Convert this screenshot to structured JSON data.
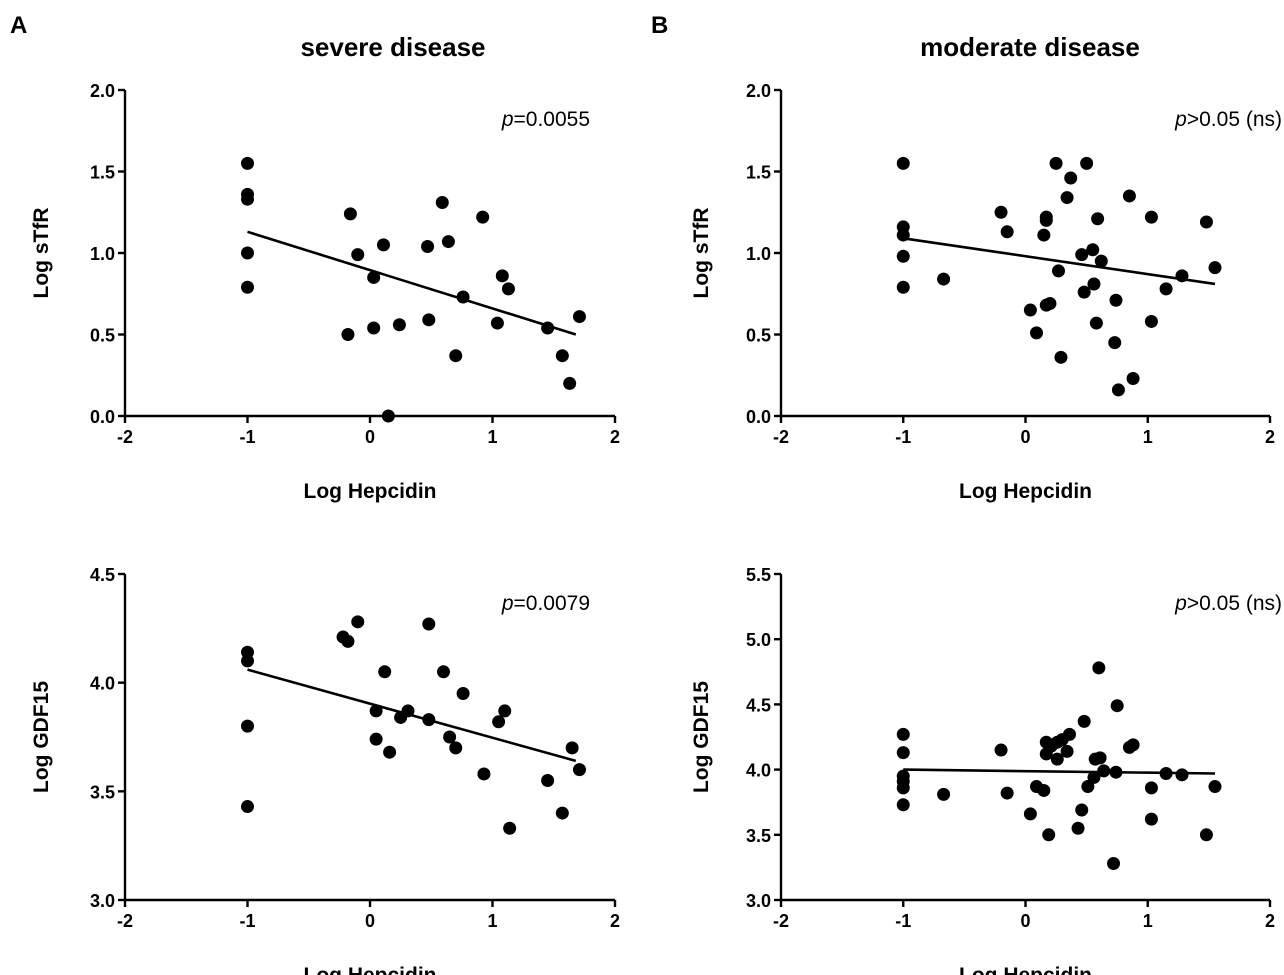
{
  "panel_letters": [
    "A",
    "B"
  ],
  "titles": [
    "severe disease",
    "moderate disease"
  ],
  "chart_data": [
    {
      "type": "scatter",
      "panel": "A",
      "title": "severe disease",
      "xlabel": "Log Hepcidin",
      "ylabel": "Log sTfR",
      "xlim": [
        -2,
        2
      ],
      "ylim": [
        0.0,
        2.0
      ],
      "xticks": [
        "-2",
        "-1",
        "0",
        "1",
        "2"
      ],
      "yticks": [
        "0.0",
        "0.5",
        "1.0",
        "1.5",
        "2.0"
      ],
      "annotation": {
        "italic": "p",
        "rest": "=0.0055"
      },
      "fit_line": {
        "x": [
          -1.0,
          1.68
        ],
        "y": [
          1.13,
          0.5
        ]
      },
      "points": [
        {
          "x": -1.0,
          "y": 1.55
        },
        {
          "x": -1.0,
          "y": 1.36
        },
        {
          "x": -1.0,
          "y": 1.33
        },
        {
          "x": -1.0,
          "y": 1.0
        },
        {
          "x": -1.0,
          "y": 0.79
        },
        {
          "x": -0.18,
          "y": 0.5
        },
        {
          "x": -0.16,
          "y": 1.24
        },
        {
          "x": -0.1,
          "y": 0.99
        },
        {
          "x": 0.03,
          "y": 0.85
        },
        {
          "x": 0.03,
          "y": 0.54
        },
        {
          "x": 0.11,
          "y": 1.05
        },
        {
          "x": 0.15,
          "y": 0.0
        },
        {
          "x": 0.24,
          "y": 0.56
        },
        {
          "x": 0.47,
          "y": 1.04
        },
        {
          "x": 0.48,
          "y": 0.59
        },
        {
          "x": 0.59,
          "y": 1.31
        },
        {
          "x": 0.64,
          "y": 1.07
        },
        {
          "x": 0.7,
          "y": 0.37
        },
        {
          "x": 0.76,
          "y": 0.73
        },
        {
          "x": 0.92,
          "y": 1.22
        },
        {
          "x": 1.04,
          "y": 0.57
        },
        {
          "x": 1.08,
          "y": 0.86
        },
        {
          "x": 1.13,
          "y": 0.78
        },
        {
          "x": 1.45,
          "y": 0.54
        },
        {
          "x": 1.57,
          "y": 0.37
        },
        {
          "x": 1.63,
          "y": 0.2
        },
        {
          "x": 1.71,
          "y": 0.61
        }
      ]
    },
    {
      "type": "scatter",
      "panel": "B",
      "title": "moderate disease",
      "xlabel": "Log Hepcidin",
      "ylabel": "Log sTfR",
      "xlim": [
        -2,
        2
      ],
      "ylim": [
        0.0,
        2.0
      ],
      "xticks": [
        "-2",
        "-1",
        "0",
        "1",
        "2"
      ],
      "yticks": [
        "0.0",
        "0.5",
        "1.0",
        "1.5",
        "2.0"
      ],
      "annotation": {
        "italic": "p",
        "rest": ">0.05 (ns)"
      },
      "fit_line": {
        "x": [
          -1.0,
          1.55
        ],
        "y": [
          1.09,
          0.81
        ]
      },
      "points": [
        {
          "x": -1.0,
          "y": 1.55
        },
        {
          "x": -1.0,
          "y": 1.16
        },
        {
          "x": -1.0,
          "y": 1.11
        },
        {
          "x": -1.0,
          "y": 0.98
        },
        {
          "x": -1.0,
          "y": 0.79
        },
        {
          "x": -0.67,
          "y": 0.84
        },
        {
          "x": -0.2,
          "y": 1.25
        },
        {
          "x": -0.15,
          "y": 1.13
        },
        {
          "x": 0.04,
          "y": 0.65
        },
        {
          "x": 0.09,
          "y": 0.51
        },
        {
          "x": 0.15,
          "y": 1.11
        },
        {
          "x": 0.17,
          "y": 1.22
        },
        {
          "x": 0.17,
          "y": 1.2
        },
        {
          "x": 0.17,
          "y": 0.68
        },
        {
          "x": 0.2,
          "y": 0.69
        },
        {
          "x": 0.25,
          "y": 1.55
        },
        {
          "x": 0.27,
          "y": 0.89
        },
        {
          "x": 0.29,
          "y": 0.36
        },
        {
          "x": 0.34,
          "y": 1.34
        },
        {
          "x": 0.37,
          "y": 1.46
        },
        {
          "x": 0.46,
          "y": 0.99
        },
        {
          "x": 0.48,
          "y": 0.76
        },
        {
          "x": 0.5,
          "y": 1.55
        },
        {
          "x": 0.55,
          "y": 1.02
        },
        {
          "x": 0.56,
          "y": 0.81
        },
        {
          "x": 0.58,
          "y": 0.57
        },
        {
          "x": 0.59,
          "y": 1.21
        },
        {
          "x": 0.62,
          "y": 0.95
        },
        {
          "x": 0.73,
          "y": 0.45
        },
        {
          "x": 0.74,
          "y": 0.71
        },
        {
          "x": 0.76,
          "y": 0.16
        },
        {
          "x": 0.85,
          "y": 1.35
        },
        {
          "x": 0.88,
          "y": 0.23
        },
        {
          "x": 1.03,
          "y": 1.22
        },
        {
          "x": 1.03,
          "y": 0.58
        },
        {
          "x": 1.15,
          "y": 0.78
        },
        {
          "x": 1.28,
          "y": 0.86
        },
        {
          "x": 1.48,
          "y": 1.19
        },
        {
          "x": 1.55,
          "y": 0.91
        }
      ]
    },
    {
      "type": "scatter",
      "panel": "A",
      "title": "",
      "xlabel": "Log Hepcidin",
      "ylabel": "Log GDF15",
      "xlim": [
        -2,
        2
      ],
      "ylim": [
        3.0,
        4.5
      ],
      "xticks": [
        "-2",
        "-1",
        "0",
        "1",
        "2"
      ],
      "yticks": [
        "3.0",
        "3.5",
        "4.0",
        "4.5"
      ],
      "annotation": {
        "italic": "p",
        "rest": "=0.0079"
      },
      "fit_line": {
        "x": [
          -1.0,
          1.68
        ],
        "y": [
          4.06,
          3.64
        ]
      },
      "points": [
        {
          "x": -1.0,
          "y": 4.14
        },
        {
          "x": -1.0,
          "y": 4.1
        },
        {
          "x": -1.0,
          "y": 3.8
        },
        {
          "x": -1.0,
          "y": 3.43
        },
        {
          "x": -0.22,
          "y": 4.21
        },
        {
          "x": -0.18,
          "y": 4.19
        },
        {
          "x": -0.1,
          "y": 4.28
        },
        {
          "x": 0.05,
          "y": 3.87
        },
        {
          "x": 0.05,
          "y": 3.74
        },
        {
          "x": 0.12,
          "y": 4.05
        },
        {
          "x": 0.16,
          "y": 3.68
        },
        {
          "x": 0.25,
          "y": 3.84
        },
        {
          "x": 0.31,
          "y": 3.87
        },
        {
          "x": 0.48,
          "y": 3.83
        },
        {
          "x": 0.48,
          "y": 4.27
        },
        {
          "x": 0.6,
          "y": 4.05
        },
        {
          "x": 0.65,
          "y": 3.75
        },
        {
          "x": 0.7,
          "y": 3.7
        },
        {
          "x": 0.76,
          "y": 3.95
        },
        {
          "x": 0.93,
          "y": 3.58
        },
        {
          "x": 1.05,
          "y": 3.82
        },
        {
          "x": 1.1,
          "y": 3.87
        },
        {
          "x": 1.14,
          "y": 3.33
        },
        {
          "x": 1.45,
          "y": 3.55
        },
        {
          "x": 1.57,
          "y": 3.4
        },
        {
          "x": 1.65,
          "y": 3.7
        },
        {
          "x": 1.71,
          "y": 3.6
        }
      ]
    },
    {
      "type": "scatter",
      "panel": "B",
      "title": "",
      "xlabel": "Log Hepcidin",
      "ylabel": "Log GDF15",
      "xlim": [
        -2,
        2
      ],
      "ylim": [
        3.0,
        5.5
      ],
      "xticks": [
        "-2",
        "-1",
        "0",
        "1",
        "2"
      ],
      "yticks": [
        "3.0",
        "3.5",
        "4.0",
        "4.5",
        "5.0",
        "5.5"
      ],
      "annotation": {
        "italic": "p",
        "rest": ">0.05 (ns)"
      },
      "fit_line": {
        "x": [
          -1.0,
          1.55
        ],
        "y": [
          4.0,
          3.97
        ]
      },
      "points": [
        {
          "x": -1.0,
          "y": 4.27
        },
        {
          "x": -1.0,
          "y": 4.13
        },
        {
          "x": -1.0,
          "y": 3.95
        },
        {
          "x": -1.0,
          "y": 3.91
        },
        {
          "x": -1.0,
          "y": 3.86
        },
        {
          "x": -1.0,
          "y": 3.73
        },
        {
          "x": -0.67,
          "y": 3.81
        },
        {
          "x": -0.2,
          "y": 4.15
        },
        {
          "x": -0.15,
          "y": 3.82
        },
        {
          "x": 0.04,
          "y": 3.66
        },
        {
          "x": 0.09,
          "y": 3.87
        },
        {
          "x": 0.15,
          "y": 3.84
        },
        {
          "x": 0.17,
          "y": 4.21
        },
        {
          "x": 0.17,
          "y": 4.12
        },
        {
          "x": 0.19,
          "y": 3.5
        },
        {
          "x": 0.21,
          "y": 4.18
        },
        {
          "x": 0.26,
          "y": 4.21
        },
        {
          "x": 0.26,
          "y": 4.08
        },
        {
          "x": 0.3,
          "y": 4.23
        },
        {
          "x": 0.34,
          "y": 4.14
        },
        {
          "x": 0.36,
          "y": 4.27
        },
        {
          "x": 0.43,
          "y": 3.55
        },
        {
          "x": 0.46,
          "y": 3.69
        },
        {
          "x": 0.48,
          "y": 4.37
        },
        {
          "x": 0.51,
          "y": 3.87
        },
        {
          "x": 0.56,
          "y": 3.94
        },
        {
          "x": 0.57,
          "y": 4.08
        },
        {
          "x": 0.6,
          "y": 4.78
        },
        {
          "x": 0.61,
          "y": 4.09
        },
        {
          "x": 0.64,
          "y": 3.99
        },
        {
          "x": 0.72,
          "y": 3.28
        },
        {
          "x": 0.74,
          "y": 3.98
        },
        {
          "x": 0.75,
          "y": 4.49
        },
        {
          "x": 0.85,
          "y": 4.17
        },
        {
          "x": 0.88,
          "y": 4.19
        },
        {
          "x": 1.03,
          "y": 3.86
        },
        {
          "x": 1.03,
          "y": 3.62
        },
        {
          "x": 1.15,
          "y": 3.97
        },
        {
          "x": 1.28,
          "y": 3.96
        },
        {
          "x": 1.48,
          "y": 3.5
        },
        {
          "x": 1.55,
          "y": 3.87
        }
      ]
    }
  ]
}
